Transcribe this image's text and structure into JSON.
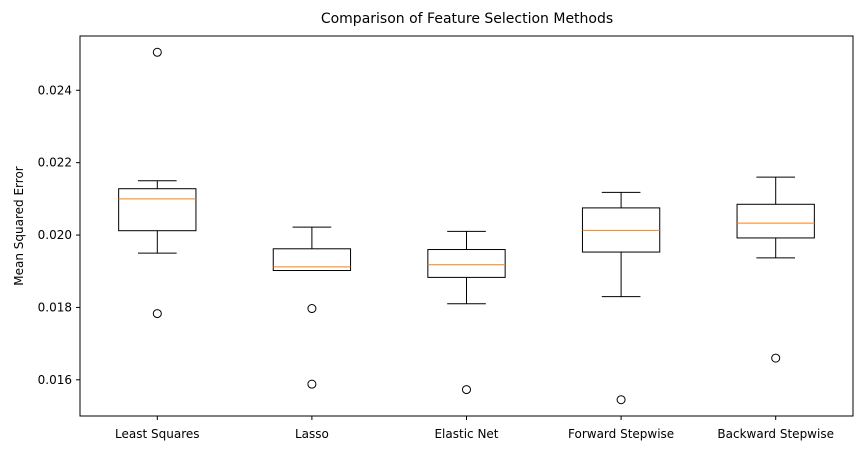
{
  "chart_data": {
    "type": "box",
    "title": "Comparison of Feature Selection Methods",
    "xlabel": "",
    "ylabel": "Mean Squared Error",
    "categories": [
      "Least Squares",
      "Lasso",
      "Elastic Net",
      "Forward Stepwise",
      "Backward Stepwise"
    ],
    "ylim": [
      0.015,
      0.0255
    ],
    "yticks": [
      0.016,
      0.018,
      0.02,
      0.022,
      0.024
    ],
    "ytick_labels": [
      "0.016",
      "0.018",
      "0.020",
      "0.022",
      "0.024"
    ],
    "grid": false,
    "boxes": [
      {
        "category": "Least Squares",
        "whisker_low": 0.0195,
        "q1": 0.02012,
        "median": 0.021,
        "q3": 0.02128,
        "whisker_high": 0.0215,
        "outliers": [
          0.02505,
          0.01783
        ]
      },
      {
        "category": "Lasso",
        "whisker_low": 0.01902,
        "q1": 0.01902,
        "median": 0.01912,
        "q3": 0.01962,
        "whisker_high": 0.02022,
        "outliers": [
          0.01797,
          0.01588
        ]
      },
      {
        "category": "Elastic Net",
        "whisker_low": 0.0181,
        "q1": 0.01883,
        "median": 0.01918,
        "q3": 0.0196,
        "whisker_high": 0.0201,
        "outliers": [
          0.01573
        ]
      },
      {
        "category": "Forward Stepwise",
        "whisker_low": 0.0183,
        "q1": 0.01953,
        "median": 0.02013,
        "q3": 0.02075,
        "whisker_high": 0.02118,
        "outliers": [
          0.01545
        ]
      },
      {
        "category": "Backward Stepwise",
        "whisker_low": 0.01937,
        "q1": 0.01992,
        "median": 0.02033,
        "q3": 0.02085,
        "whisker_high": 0.0216,
        "outliers": [
          0.0166
        ]
      }
    ],
    "colors": {
      "box": "#000000",
      "median": "#ff7f0e",
      "outlier": "#000000"
    }
  }
}
